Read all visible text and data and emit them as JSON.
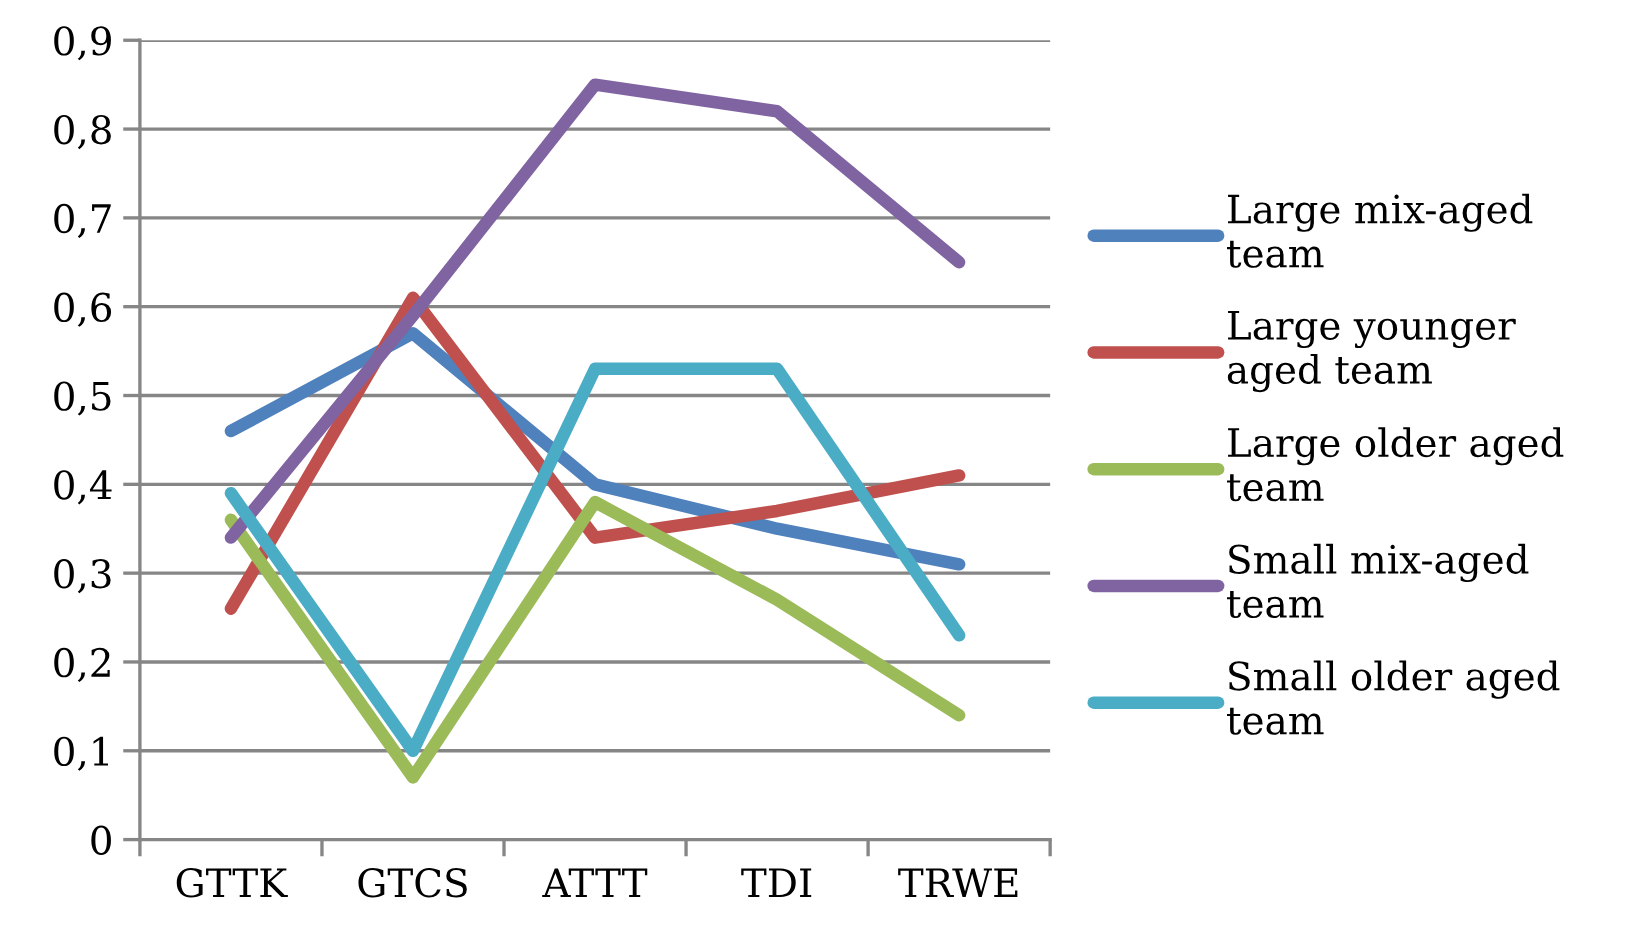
{
  "chart_data": {
    "type": "line",
    "categories": [
      "GTTK",
      "GTCS",
      "ATTT",
      "TDI",
      "TRWE"
    ],
    "series": [
      {
        "name": "Large mix-aged team",
        "color": "#4f81bd",
        "values": [
          0.46,
          0.57,
          0.4,
          0.35,
          0.31
        ]
      },
      {
        "name": "Large younger aged team",
        "color": "#c0504d",
        "values": [
          0.26,
          0.61,
          0.34,
          0.37,
          0.41
        ]
      },
      {
        "name": "Large older aged team",
        "color": "#9bbb59",
        "values": [
          0.36,
          0.07,
          0.38,
          0.27,
          0.14
        ]
      },
      {
        "name": "Small mix-aged team",
        "color": "#8064a2",
        "values": [
          0.34,
          0.59,
          0.85,
          0.82,
          0.65
        ]
      },
      {
        "name": "Small older aged team",
        "color": "#4bacc6",
        "values": [
          0.39,
          0.1,
          0.53,
          0.53,
          0.23
        ]
      }
    ],
    "ylim": [
      0,
      0.9
    ],
    "yticks": [
      0,
      {
        "value": 0.1,
        "label": "0,1"
      },
      {
        "value": 0.2,
        "label": "0,2"
      },
      {
        "value": 0.3,
        "label": "0,3"
      },
      {
        "value": 0.4,
        "label": "0,4"
      },
      {
        "value": 0.5,
        "label": "0,5"
      },
      {
        "value": 0.6,
        "label": "0,6"
      },
      {
        "value": 0.7,
        "label": "0,7"
      },
      {
        "value": 0.8,
        "label": "0,8"
      },
      {
        "value": 0.9,
        "label": "0,9"
      }
    ],
    "grid": "y",
    "legend": "right",
    "marker": "none",
    "line_style": "solid"
  }
}
